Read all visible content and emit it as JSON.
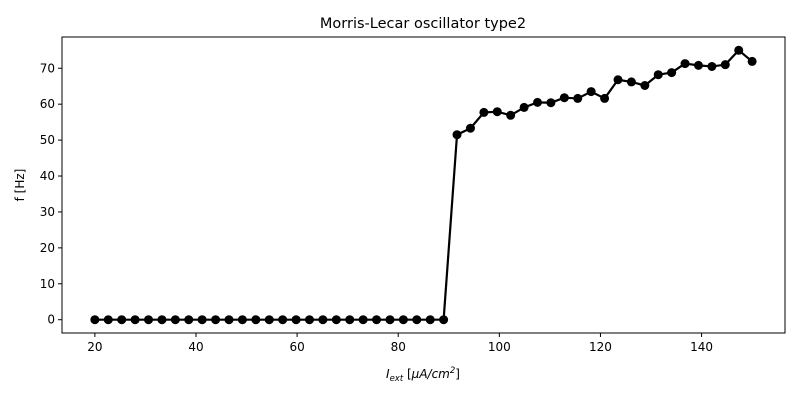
{
  "chart_data": {
    "type": "line",
    "title": "Morris-Lecar oscillator type2",
    "xlabel": {
      "main": "I",
      "sub": "ext",
      "units_open": " [",
      "mu": "μ",
      "units_mid": "A/cm",
      "sup": "2",
      "units_close": "]"
    },
    "ylabel": "f [Hz]",
    "xlim": [
      13.5,
      156.5
    ],
    "ylim": [
      -3.7,
      78.7
    ],
    "xticks": [
      20,
      40,
      60,
      80,
      100,
      120,
      140
    ],
    "yticks": [
      0,
      10,
      20,
      30,
      40,
      50,
      60,
      70
    ],
    "grid": false,
    "marker": "circle",
    "series": [
      {
        "color": "#000000",
        "x": [
          20,
          22.65,
          25.31,
          27.96,
          30.61,
          33.27,
          35.92,
          38.57,
          41.22,
          43.88,
          46.53,
          49.18,
          51.84,
          54.49,
          57.14,
          59.8,
          62.45,
          65.1,
          67.76,
          70.41,
          73.06,
          75.71,
          78.37,
          81.02,
          83.67,
          86.33,
          88.98,
          91.63,
          94.29,
          96.94,
          99.59,
          102.24,
          104.9,
          107.55,
          110.2,
          112.86,
          115.51,
          118.16,
          120.82,
          123.47,
          126.12,
          128.78,
          131.43,
          134.08,
          136.73,
          139.39,
          142.04,
          144.69,
          147.35,
          150
        ],
        "y": [
          0,
          0,
          0,
          0,
          0,
          0,
          0,
          0,
          0,
          0,
          0,
          0,
          0,
          0,
          0,
          0,
          0,
          0,
          0,
          0,
          0,
          0,
          0,
          0,
          0,
          0,
          0,
          51.5,
          53.3,
          57.7,
          57.9,
          56.9,
          59.1,
          60.5,
          60.4,
          61.8,
          61.6,
          63.5,
          61.6,
          66.8,
          66.2,
          65.2,
          68.2,
          68.8,
          71.3,
          70.8,
          70.5,
          71.0,
          75.0,
          71.9
        ]
      }
    ]
  }
}
